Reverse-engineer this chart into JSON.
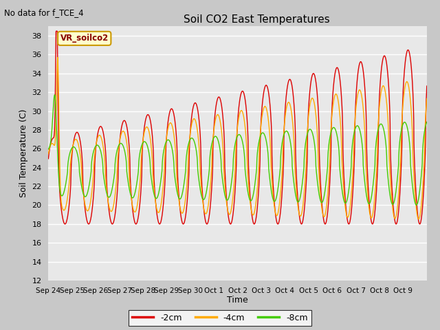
{
  "title": "Soil CO2 East Temperatures",
  "subtitle": "No data for f_TCE_4",
  "xlabel": "Time",
  "ylabel": "Soil Temperature (C)",
  "ylim": [
    12,
    39
  ],
  "yticks": [
    12,
    14,
    16,
    18,
    20,
    22,
    24,
    26,
    28,
    30,
    32,
    34,
    36,
    38
  ],
  "annotation": "VR_soilco2",
  "fig_bg": "#c8c8c8",
  "plot_bg": "#e8e8e8",
  "line_colors": {
    "2cm": "#dd0000",
    "4cm": "#ffaa00",
    "8cm": "#44cc00"
  },
  "x_labels": [
    "Sep 24",
    "Sep 25",
    "Sep 26",
    "Sep 27",
    "Sep 28",
    "Sep 29",
    "Sep 30",
    "Oct 1",
    "Oct 2",
    "Oct 3",
    "Oct 4",
    "Oct 5",
    "Oct 6",
    "Oct 7",
    "Oct 8",
    "Oct 9"
  ],
  "num_points": 2000
}
